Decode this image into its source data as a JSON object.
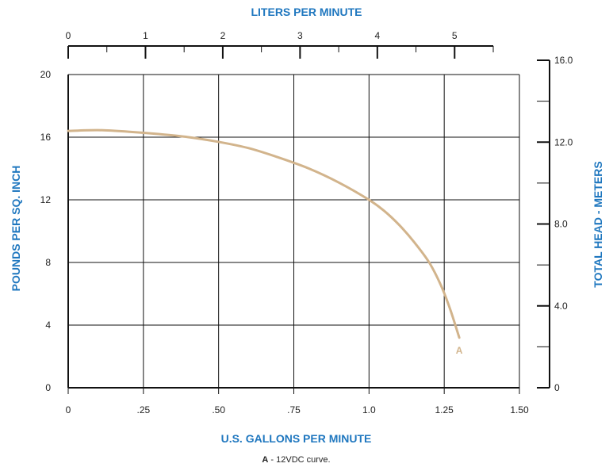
{
  "chart_data": {
    "type": "line",
    "title": "",
    "top_axis": {
      "label": "LITERS PER MINUTE",
      "ticks": [
        0,
        1,
        2,
        3,
        4,
        5
      ],
      "tick_labels": [
        "0",
        "1",
        "2",
        "3",
        "4",
        "5"
      ],
      "range": [
        0,
        5.5
      ]
    },
    "bottom_axis": {
      "label": "U.S. GALLONS PER MINUTE",
      "ticks": [
        0,
        0.25,
        0.5,
        0.75,
        1.0,
        1.25,
        1.5
      ],
      "tick_labels": [
        "0",
        ".25",
        ".50",
        ".75",
        "1.0",
        "1.25",
        "1.50"
      ],
      "range": [
        0,
        1.5
      ]
    },
    "left_axis": {
      "label": "POUNDS PER SQ. INCH",
      "ticks": [
        0,
        4,
        8,
        12,
        16,
        20
      ],
      "tick_labels": [
        "0",
        "4",
        "8",
        "12",
        "16",
        "20"
      ],
      "range": [
        0,
        20
      ]
    },
    "right_axis": {
      "label": "TOTAL HEAD - METERS",
      "ticks": [
        0,
        4,
        8,
        12,
        16
      ],
      "tick_labels": [
        "0",
        "4.0",
        "8.0",
        "12.0",
        "16.0"
      ],
      "range": [
        0,
        16
      ]
    },
    "grid": true,
    "series": [
      {
        "name": "A",
        "color": "#d2b48c",
        "x": [
          0,
          0.1,
          0.2,
          0.3,
          0.4,
          0.5,
          0.6,
          0.7,
          0.8,
          0.9,
          1.0,
          1.05,
          1.1,
          1.15,
          1.2,
          1.24,
          1.27,
          1.3
        ],
        "y": [
          16.4,
          16.45,
          16.35,
          16.2,
          16.0,
          15.7,
          15.3,
          14.7,
          14.0,
          13.1,
          12.0,
          11.3,
          10.4,
          9.3,
          8.0,
          6.5,
          5.0,
          3.2
        ]
      }
    ]
  },
  "caption": {
    "bold": "A",
    "text": " - 12VDC curve."
  }
}
